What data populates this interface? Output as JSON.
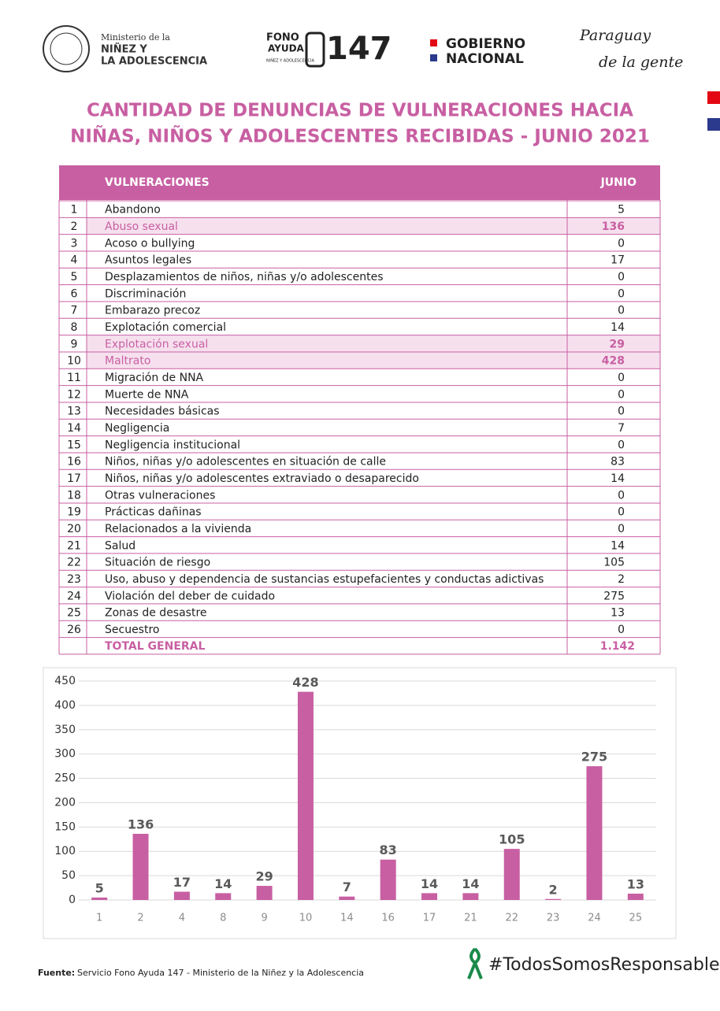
{
  "header": {
    "ministry": [
      "Ministerio de la",
      "NIÑEZ Y",
      "LA ADOLESCENCIA"
    ],
    "fono": [
      "FONO",
      "AYUDA",
      "147",
      "NIÑEZ Y ADOLESCENCIA"
    ],
    "gobierno": [
      "GOBIERNO",
      "NACIONAL"
    ],
    "slogan": [
      "Paraguay",
      "de la gente"
    ]
  },
  "title": [
    "CANTIDAD DE DENUNCIAS DE  VULNERACIONES HACIA",
    "NIÑAS, NIÑOS Y ADOLESCENTES RECIBIDAS - JUNIO 2021"
  ],
  "table": {
    "columns": [
      "VULNERACIONES",
      "JUNIO"
    ],
    "rows": [
      {
        "n": 1,
        "label": "Abandono",
        "value": 5
      },
      {
        "n": 2,
        "label": "Abuso sexual",
        "value": 136,
        "highlighted": true
      },
      {
        "n": 3,
        "label": "Acoso o bullying",
        "value": 0
      },
      {
        "n": 4,
        "label": "Asuntos legales",
        "value": 17
      },
      {
        "n": 5,
        "label": "Desplazamientos de niños, niñas y/o adolescentes",
        "value": 0
      },
      {
        "n": 6,
        "label": "Discriminación",
        "value": 0
      },
      {
        "n": 7,
        "label": "Embarazo precoz",
        "value": 0
      },
      {
        "n": 8,
        "label": "Explotación comercial",
        "value": 14
      },
      {
        "n": 9,
        "label": "Explotación sexual",
        "value": 29,
        "highlighted": true
      },
      {
        "n": 10,
        "label": "Maltrato",
        "value": 428,
        "highlighted": true
      },
      {
        "n": 11,
        "label": "Migración de NNA",
        "value": 0
      },
      {
        "n": 12,
        "label": "Muerte de NNA",
        "value": 0
      },
      {
        "n": 13,
        "label": "Necesidades básicas",
        "value": 0
      },
      {
        "n": 14,
        "label": "Negligencia",
        "value": 7
      },
      {
        "n": 15,
        "label": "Negligencia institucional",
        "value": 0
      },
      {
        "n": 16,
        "label": "Niños, niñas y/o adolescentes en situación de calle",
        "value": 83
      },
      {
        "n": 17,
        "label": "Niños, niñas y/o adolescentes extraviado o desaparecido",
        "value": 14
      },
      {
        "n": 18,
        "label": "Otras vulneraciones",
        "value": 0
      },
      {
        "n": 19,
        "label": "Prácticas dañinas",
        "value": 0
      },
      {
        "n": 20,
        "label": "Relacionados a la vivienda",
        "value": 0
      },
      {
        "n": 21,
        "label": "Salud",
        "value": 14
      },
      {
        "n": 22,
        "label": "Situación de riesgo",
        "value": 105
      },
      {
        "n": 23,
        "label": "Uso, abuso y dependencia de sustancias estupefacientes y conductas adictivas",
        "value": 2
      },
      {
        "n": 24,
        "label": "Violación del deber de cuidado",
        "value": 275
      },
      {
        "n": 25,
        "label": "Zonas de desastre",
        "value": 13
      },
      {
        "n": 26,
        "label": "Secuestro",
        "value": 0
      }
    ],
    "total": {
      "label": "TOTAL GENERAL",
      "value": 1142,
      "value_label": "1.142"
    }
  },
  "chart_data": {
    "type": "bar",
    "categories": [
      "1",
      "2",
      "4",
      "8",
      "9",
      "10",
      "14",
      "16",
      "17",
      "21",
      "22",
      "23",
      "24",
      "25"
    ],
    "values": [
      5,
      136,
      17,
      14,
      29,
      428,
      7,
      83,
      14,
      14,
      105,
      2,
      275,
      13
    ],
    "color": "#c85fa2",
    "ylim": [
      0,
      450
    ],
    "yticks": [
      0,
      50,
      100,
      150,
      200,
      250,
      300,
      350,
      400,
      450
    ],
    "grid": true
  },
  "footer": {
    "source_label": "Fuente:",
    "source": "Servicio Fono Ayuda 147 - Ministerio de la Niñez y la Adolescencia",
    "hashtag": "#TodosSomosResponsables"
  }
}
